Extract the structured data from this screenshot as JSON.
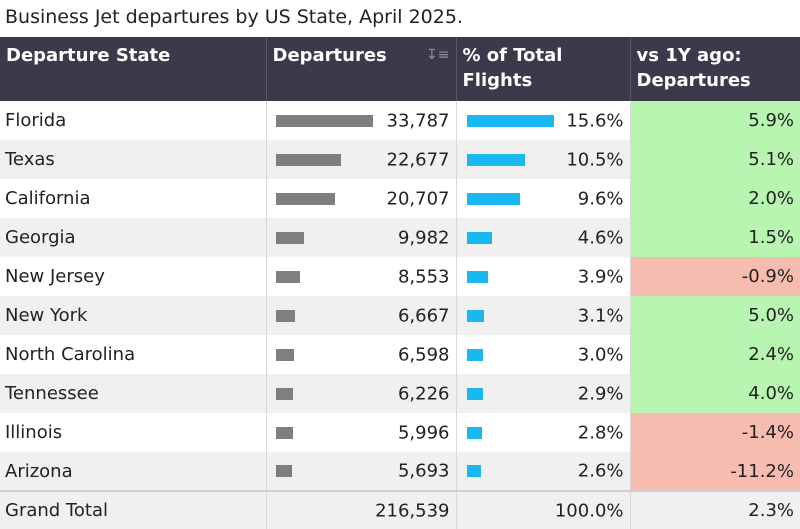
{
  "title": "Business Jet departures by US State, April 2025.",
  "headers": {
    "state": "Departure State",
    "departures": "Departures",
    "pct": "% of Total Flights",
    "yoy": "vs 1Y ago: Departures"
  },
  "colors": {
    "header_bg": "#3a3a4a",
    "departures_bar": "#7f7f7f",
    "pct_bar": "#19b8f0",
    "positive_bg": "#b7f5b0",
    "negative_bg": "#f7bcb0"
  },
  "chart_data": {
    "type": "table",
    "title": "Business Jet departures by US State, April 2025.",
    "columns": [
      "Departure State",
      "Departures",
      "% of Total Flights",
      "vs 1Y ago: Departures"
    ],
    "rows": [
      {
        "state": "Florida",
        "departures": 33787,
        "departures_label": "33,787",
        "pct": 15.6,
        "pct_label": "15.6%",
        "yoy": 5.9,
        "yoy_label": "5.9%"
      },
      {
        "state": "Texas",
        "departures": 22677,
        "departures_label": "22,677",
        "pct": 10.5,
        "pct_label": "10.5%",
        "yoy": 5.1,
        "yoy_label": "5.1%"
      },
      {
        "state": "California",
        "departures": 20707,
        "departures_label": "20,707",
        "pct": 9.6,
        "pct_label": "9.6%",
        "yoy": 2.0,
        "yoy_label": "2.0%"
      },
      {
        "state": "Georgia",
        "departures": 9982,
        "departures_label": "9,982",
        "pct": 4.6,
        "pct_label": "4.6%",
        "yoy": 1.5,
        "yoy_label": "1.5%"
      },
      {
        "state": "New Jersey",
        "departures": 8553,
        "departures_label": "8,553",
        "pct": 3.9,
        "pct_label": "3.9%",
        "yoy": -0.9,
        "yoy_label": "-0.9%"
      },
      {
        "state": "New York",
        "departures": 6667,
        "departures_label": "6,667",
        "pct": 3.1,
        "pct_label": "3.1%",
        "yoy": 5.0,
        "yoy_label": "5.0%"
      },
      {
        "state": "North Carolina",
        "departures": 6598,
        "departures_label": "6,598",
        "pct": 3.0,
        "pct_label": "3.0%",
        "yoy": 2.4,
        "yoy_label": "2.4%"
      },
      {
        "state": "Tennessee",
        "departures": 6226,
        "departures_label": "6,226",
        "pct": 2.9,
        "pct_label": "2.9%",
        "yoy": 4.0,
        "yoy_label": "4.0%"
      },
      {
        "state": "Illinois",
        "departures": 5996,
        "departures_label": "5,996",
        "pct": 2.8,
        "pct_label": "2.8%",
        "yoy": -1.4,
        "yoy_label": "-1.4%"
      },
      {
        "state": "Arizona",
        "departures": 5693,
        "departures_label": "5,693",
        "pct": 2.6,
        "pct_label": "2.6%",
        "yoy": -11.2,
        "yoy_label": "-11.2%"
      }
    ],
    "total": {
      "state": "Grand Total",
      "departures": 216539,
      "departures_label": "216,539",
      "pct": 100.0,
      "pct_label": "100.0%",
      "yoy": 2.3,
      "yoy_label": "2.3%"
    }
  }
}
